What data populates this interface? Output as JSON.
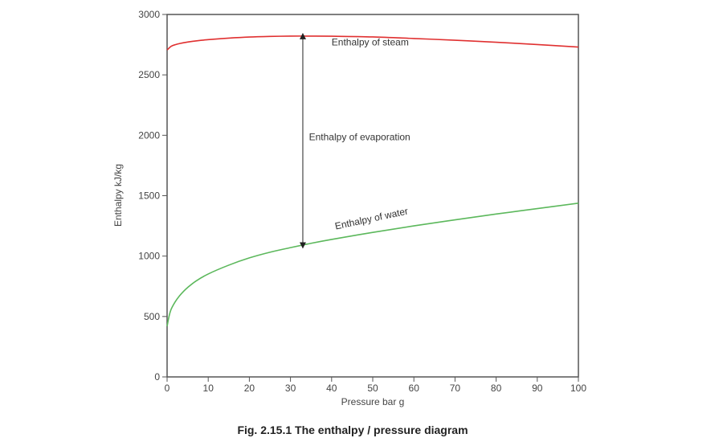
{
  "chart_data": {
    "type": "line",
    "title": "",
    "caption": "Fig. 2.15.1 The enthalpy / pressure diagram",
    "xlabel": "Pressure bar g",
    "ylabel": "Enthalpy kJ/kg",
    "xlim": [
      0,
      100
    ],
    "ylim": [
      0,
      3000
    ],
    "xticks": [
      0,
      10,
      20,
      30,
      40,
      50,
      60,
      70,
      80,
      90,
      100
    ],
    "yticks": [
      0,
      500,
      1000,
      1500,
      2000,
      2500,
      3000
    ],
    "grid": false,
    "series": [
      {
        "name": "Enthalpy of steam",
        "color": "#e03030",
        "x": [
          0,
          1,
          2,
          3,
          5,
          8,
          10,
          15,
          20,
          25,
          30,
          35,
          40,
          50,
          60,
          70,
          80,
          90,
          100
        ],
        "y": [
          2706,
          2737,
          2750,
          2759,
          2772,
          2785,
          2792,
          2804,
          2813,
          2818,
          2821,
          2821,
          2820,
          2814,
          2801,
          2787,
          2770,
          2751,
          2730
        ]
      },
      {
        "name": "Enthalpy of water",
        "color": "#5cb85c",
        "x": [
          0,
          0.5,
          1,
          2,
          3,
          4,
          5,
          7,
          10,
          15,
          20,
          25,
          30,
          35,
          40,
          50,
          60,
          70,
          80,
          90,
          100
        ],
        "y": [
          419,
          505,
          561,
          623,
          670,
          708,
          740,
          793,
          852,
          925,
          985,
          1032,
          1070,
          1106,
          1138,
          1196,
          1250,
          1300,
          1348,
          1393,
          1438
        ]
      }
    ],
    "annotations": [
      {
        "text": "Enthalpy of steam",
        "x": 40,
        "y": 2745
      },
      {
        "text": "Enthalpy of evaporation",
        "x": 34.5,
        "y": 1960,
        "arrow_x": 33,
        "arrow_from": 1088,
        "arrow_to": 2821
      },
      {
        "text": "Enthalpy of water",
        "x": 41,
        "y": 1220,
        "rotation": -12
      }
    ]
  }
}
